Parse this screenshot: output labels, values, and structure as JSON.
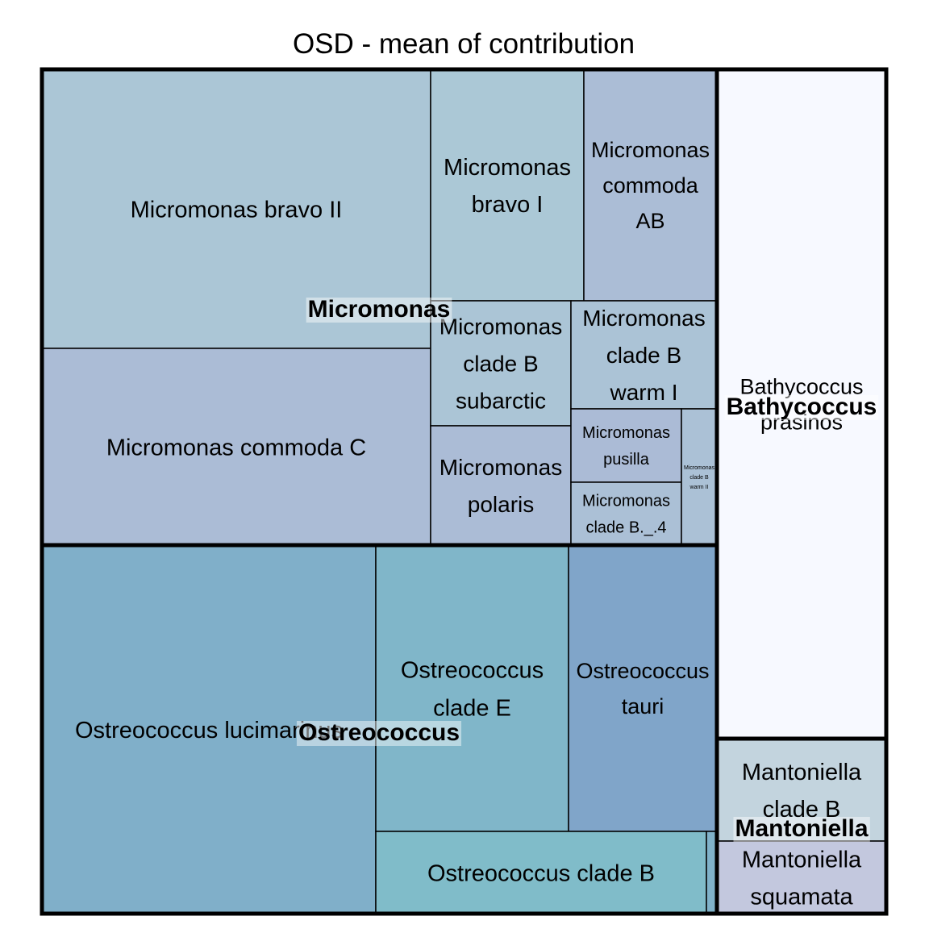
{
  "chart_data": {
    "type": "treemap",
    "title": "OSD - mean of contribution",
    "groups": [
      {
        "name": "Micromonas",
        "label": "Micromonas",
        "items": [
          {
            "name": "Micromonas bravo II",
            "lines": [
              "Micromonas bravo II"
            ],
            "color": "#abc6d6"
          },
          {
            "name": "Micromonas commoda C",
            "lines": [
              "Micromonas commoda C"
            ],
            "color": "#abbcd6"
          },
          {
            "name": "Micromonas bravo I",
            "lines": [
              "Micromonas",
              "bravo I"
            ],
            "color": "#abc8d6"
          },
          {
            "name": "Micromonas commoda AB",
            "lines": [
              "Micromonas",
              "commoda",
              "AB"
            ],
            "color": "#abbdd6"
          },
          {
            "name": "Micromonas clade B subarctic",
            "lines": [
              "Micromonas",
              "clade B",
              "subarctic"
            ],
            "color": "#abc5d6"
          },
          {
            "name": "Micromonas clade B warm I",
            "lines": [
              "Micromonas",
              "clade B",
              "warm I"
            ],
            "color": "#abc3d6"
          },
          {
            "name": "Micromonas polaris",
            "lines": [
              "Micromonas",
              "polaris"
            ],
            "color": "#abbcd6"
          },
          {
            "name": "Micromonas pusilla",
            "lines": [
              "Micromonas",
              "pusilla"
            ],
            "color": "#abbbd6"
          },
          {
            "name": "Micromonas clade B._.4",
            "lines": [
              "Micromonas",
              "clade B._.4"
            ],
            "color": "#abc0d6"
          },
          {
            "name": "Micromonas clade B warm II",
            "lines": [
              "Micromonas",
              "clade B",
              "warm II"
            ],
            "color": "#abc1d6"
          }
        ]
      },
      {
        "name": "Ostreococcus",
        "label": "Ostreococcus",
        "items": [
          {
            "name": "Ostreococcus lucimarinus",
            "lines": [
              "Ostreococcus lucimarinus"
            ],
            "color": "#80afc9"
          },
          {
            "name": "Ostreococcus clade E",
            "lines": [
              "Ostreococcus",
              "clade E"
            ],
            "color": "#80b6c9"
          },
          {
            "name": "Ostreococcus tauri",
            "lines": [
              "Ostreococcus",
              "tauri"
            ],
            "color": "#80a5c9"
          },
          {
            "name": "Ostreococcus clade B",
            "lines": [
              "Ostreococcus clade B"
            ],
            "color": "#80bcc9"
          },
          {
            "name": "Ostreococcus (unlabeled)",
            "lines": [],
            "color": "#80b2c9"
          }
        ]
      },
      {
        "name": "Bathycoccus",
        "label": "Bathycoccus",
        "items": [
          {
            "name": "Bathycoccus prasinos",
            "lines": [
              "Bathycoccus",
              "prasinos"
            ],
            "color": "#f7f9ff"
          }
        ]
      },
      {
        "name": "Mantoniella",
        "label": "Mantoniella",
        "items": [
          {
            "name": "Mantoniella clade B",
            "lines": [
              "Mantoniella",
              "clade B"
            ],
            "color": "#c3d4de"
          },
          {
            "name": "Mantoniella squamata",
            "lines": [
              "Mantoniella",
              "squamata"
            ],
            "color": "#c3c8de"
          }
        ]
      }
    ]
  }
}
